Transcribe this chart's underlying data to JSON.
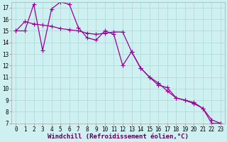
{
  "background_color": "#cff0f0",
  "grid_color": "#aad8d8",
  "line_color": "#990099",
  "marker_style": "+",
  "marker_size": 4,
  "line_width": 0.9,
  "xlabel": "Windchill (Refroidissement éolien,°C)",
  "xlabel_fontsize": 6.5,
  "tick_fontsize": 5.5,
  "ylim": [
    7,
    17.5
  ],
  "xlim": [
    -0.5,
    23.5
  ],
  "yticks": [
    7,
    8,
    9,
    10,
    11,
    12,
    13,
    14,
    15,
    16,
    17
  ],
  "xticks": [
    0,
    1,
    2,
    3,
    4,
    5,
    6,
    7,
    8,
    9,
    10,
    11,
    12,
    13,
    14,
    15,
    16,
    17,
    18,
    19,
    20,
    21,
    22,
    23
  ],
  "series1_x": [
    0,
    1,
    2,
    3,
    4,
    5,
    6,
    7,
    8,
    9,
    10,
    11,
    12,
    13,
    14,
    15,
    16,
    17,
    18,
    19,
    20,
    21,
    22,
    23
  ],
  "series1_y": [
    15.0,
    15.8,
    15.6,
    15.5,
    15.4,
    15.2,
    15.1,
    15.0,
    14.8,
    14.7,
    14.8,
    14.9,
    14.9,
    13.2,
    11.8,
    11.0,
    10.3,
    10.1,
    9.2,
    9.0,
    8.8,
    8.3,
    7.0,
    7.0
  ],
  "series2_x": [
    0,
    1,
    2,
    3,
    4,
    5,
    6,
    7,
    8,
    9,
    10,
    11,
    12,
    13,
    14,
    15,
    16,
    17,
    18,
    19,
    20,
    21,
    22,
    23
  ],
  "series2_y": [
    15.0,
    15.0,
    17.3,
    13.3,
    16.9,
    17.5,
    17.3,
    15.3,
    14.4,
    14.2,
    15.0,
    14.7,
    12.0,
    13.2,
    11.8,
    11.0,
    10.5,
    9.8,
    9.2,
    9.0,
    8.7,
    8.3,
    7.3,
    7.0
  ]
}
